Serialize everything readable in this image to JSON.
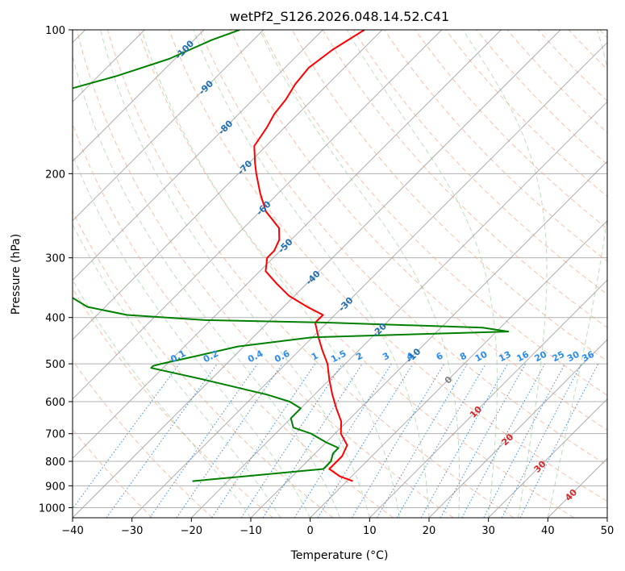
{
  "chart_data": {
    "type": "line",
    "title": "wetPf2_S126.2026.048.14.52.C41",
    "xlabel": "Temperature (°C)",
    "ylabel": "Pressure (hPa)",
    "xlim": [
      -40,
      50
    ],
    "ylim": [
      1050,
      100
    ],
    "y_scale": "log",
    "grid": true,
    "x_ticks": [
      -40,
      -30,
      -20,
      -10,
      0,
      10,
      20,
      30,
      40,
      50
    ],
    "x_tick_labels": [
      "−40",
      "−30",
      "−20",
      "−10",
      "0",
      "10",
      "20",
      "30",
      "40",
      "50"
    ],
    "y_ticks": [
      100,
      200,
      300,
      400,
      500,
      600,
      700,
      800,
      900,
      1000
    ],
    "y_tick_labels": [
      "100",
      "200",
      "300",
      "400",
      "500",
      "600",
      "700",
      "800",
      "900",
      "1000"
    ],
    "isotherm_labels": [
      {
        "text": "-100",
        "value": -100,
        "p": 110
      },
      {
        "text": "-90",
        "value": -90,
        "p": 132
      },
      {
        "text": "-80",
        "value": -80,
        "p": 160
      },
      {
        "text": "-70",
        "value": -70,
        "p": 194
      },
      {
        "text": "-60",
        "value": -60,
        "p": 236
      },
      {
        "text": "-50",
        "value": -50,
        "p": 283
      },
      {
        "text": "-40",
        "value": -40,
        "p": 330
      },
      {
        "text": "-30",
        "value": -30,
        "p": 375
      },
      {
        "text": "-20",
        "value": -20,
        "p": 425
      },
      {
        "text": "-10",
        "value": -10,
        "p": 480
      },
      {
        "text": "0",
        "value": 0,
        "p": 540
      },
      {
        "text": "10",
        "value": 10,
        "p": 630
      },
      {
        "text": "20",
        "value": 20,
        "p": 720
      },
      {
        "text": "30",
        "value": 30,
        "p": 820
      },
      {
        "text": "40",
        "value": 40,
        "p": 940
      }
    ],
    "mixing_ratio_labels": [
      "0.1",
      "0.2",
      "0.4",
      "0.6",
      "1",
      "1.5",
      "2",
      "3",
      "4",
      "6",
      "8",
      "10",
      "13",
      "16",
      "20",
      "25",
      "30",
      "36"
    ],
    "mixing_ratio_label_t": [
      -22,
      -16.5,
      -9,
      -4.5,
      1,
      5,
      8.5,
      13,
      17,
      22,
      26,
      29,
      33,
      36,
      39,
      42,
      44.5,
      47
    ],
    "series": [
      {
        "color": "#ff0000",
        "p": [
          100,
          110,
          120,
          130,
          140,
          150,
          160,
          175,
          190,
          200,
          220,
          240,
          260,
          275,
          290,
          300,
          320,
          340,
          360,
          380,
          395,
          410,
          440,
          470,
          500,
          540,
          580,
          620,
          660,
          700,
          740,
          780,
          800,
          830,
          860,
          880
        ],
        "t": [
          -73,
          -75,
          -76,
          -75.5,
          -74.5,
          -74,
          -73,
          -72,
          -69,
          -67,
          -63,
          -59,
          -54,
          -52,
          -51,
          -51,
          -49,
          -45,
          -41,
          -36,
          -32,
          -32,
          -29,
          -26,
          -23,
          -20,
          -17,
          -14,
          -11,
          -9,
          -6,
          -5,
          -5,
          -5,
          -2,
          1
        ]
      },
      {
        "color": "#008000",
        "p": [
          100,
          105,
          115,
          125,
          135,
          140,
          150,
          160,
          170,
          175,
          185,
          200,
          220,
          240,
          260,
          280,
          300,
          320,
          340,
          360,
          380,
          395,
          405,
          410,
          420,
          428,
          440,
          460,
          480,
          500,
          505,
          510,
          540,
          580,
          600,
          620,
          650,
          680,
          700,
          730,
          750,
          770,
          800,
          830,
          860,
          880
        ],
        "t": [
          -94,
          -97,
          -101,
          -107,
          -114,
          -119,
          -120,
          -116,
          -113,
          -121,
          -124,
          -124,
          -123,
          -122,
          -118,
          -109,
          -101,
          -95,
          -89,
          -78,
          -73,
          -65,
          -51,
          -30,
          -3,
          2,
          -30,
          -41,
          -46,
          -51,
          -52,
          -52,
          -41,
          -28,
          -23,
          -20,
          -20,
          -18,
          -14,
          -10,
          -7,
          -7,
          -6,
          -6,
          -18,
          -26
        ]
      }
    ]
  }
}
